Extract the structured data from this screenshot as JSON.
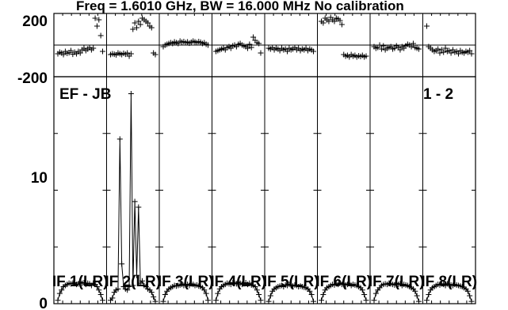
{
  "chart_data": {
    "type": "scatter",
    "title": "Freq = 1.6010 GHz, BW = 16.000 MHz   No calibration",
    "baseline_label": "EF - JB",
    "pol_label": "1 - 2",
    "phase_axis": {
      "ticks": [
        "200",
        "-200"
      ],
      "range": [
        -200,
        200
      ]
    },
    "amp_axis": {
      "ticks": [
        "10",
        "0"
      ],
      "range": [
        0,
        20
      ]
    },
    "panels": [
      {
        "label": "IF 1(LR)",
        "phase": [
          -55,
          -45,
          -50,
          -60,
          -40,
          -52,
          -48,
          -35,
          -58,
          -45,
          -55,
          -40,
          -50,
          -30,
          -20,
          -35,
          -25,
          -15,
          -30,
          -20,
          170,
          120,
          160,
          60,
          -40
        ],
        "amplitude": [
          0.3,
          0.9,
          1.2,
          1.5,
          1.6,
          1.7,
          1.8,
          1.75,
          1.8,
          1.85,
          1.7,
          1.75,
          1.9,
          1.8,
          1.85,
          1.7,
          1.8,
          1.75,
          1.6,
          1.8,
          1.7,
          1.5,
          1.2,
          0.8,
          0.3
        ]
      },
      {
        "label": "IF 2(LR)",
        "phase": [
          -60,
          -55,
          -58,
          -62,
          -50,
          -55,
          -60,
          -52,
          -58,
          -50,
          -70,
          -55,
          100,
          140,
          110,
          150,
          130,
          170,
          160,
          150,
          140,
          120,
          110,
          -50,
          -60
        ],
        "amplitude": [
          0.3,
          0.5,
          1.0,
          1.2,
          1.3,
          14.5,
          3.5,
          1.5,
          1.3,
          1.2,
          1.5,
          18.5,
          1.6,
          9.0,
          2.5,
          8.5,
          1.8,
          2.0,
          1.6,
          1.5,
          1.3,
          1.2,
          1.0,
          0.6,
          0.2
        ]
      },
      {
        "label": "IF 3(LR)",
        "phase": [
          -10,
          0,
          5,
          10,
          15,
          10,
          20,
          15,
          10,
          25,
          18,
          22,
          15,
          20,
          12,
          18,
          25,
          20,
          15,
          22,
          18,
          10,
          15,
          5,
          0
        ],
        "amplitude": [
          0.2,
          0.8,
          1.1,
          1.3,
          1.4,
          1.5,
          1.6,
          1.55,
          1.6,
          1.65,
          1.7,
          1.6,
          1.65,
          1.7,
          1.6,
          1.75,
          1.7,
          1.6,
          1.65,
          1.55,
          1.5,
          1.4,
          1.2,
          0.9,
          0.3
        ]
      },
      {
        "label": "IF 4(LR)",
        "phase": [
          -40,
          -35,
          -30,
          -25,
          -20,
          -30,
          -15,
          -10,
          -20,
          -5,
          0,
          -10,
          5,
          10,
          0,
          -5,
          -10,
          -20,
          5,
          -15,
          50,
          30,
          15,
          10,
          -50
        ],
        "amplitude": [
          0.3,
          0.9,
          1.3,
          1.5,
          1.6,
          1.7,
          1.8,
          1.75,
          1.7,
          1.85,
          1.8,
          1.75,
          1.9,
          1.8,
          1.7,
          1.75,
          1.85,
          1.7,
          1.8,
          1.65,
          1.6,
          1.5,
          1.2,
          0.8,
          0.3
        ]
      },
      {
        "label": "IF 5(LR)",
        "phase": [
          -20,
          -25,
          -15,
          -30,
          -20,
          -25,
          -35,
          -20,
          -30,
          -25,
          -40,
          -20,
          -30,
          -25,
          -15,
          -30,
          -20,
          -35,
          -25,
          -30,
          -20,
          -35,
          -25,
          -30,
          -40
        ],
        "amplitude": [
          0.2,
          0.7,
          1.1,
          1.3,
          1.4,
          1.5,
          1.55,
          1.6,
          1.5,
          1.65,
          1.6,
          1.7,
          1.6,
          1.55,
          1.65,
          1.6,
          1.5,
          1.55,
          1.5,
          1.45,
          1.4,
          1.3,
          1.1,
          0.8,
          0.2
        ]
      },
      {
        "label": "IF 6(LR)",
        "phase": [
          150,
          140,
          170,
          160,
          150,
          175,
          160,
          150,
          170,
          165,
          155,
          130,
          -60,
          -70,
          -65,
          -75,
          -60,
          -70,
          -65,
          -75,
          -68,
          -72,
          -65,
          -75,
          -70
        ],
        "amplitude": [
          0.3,
          0.8,
          1.2,
          1.4,
          1.5,
          1.6,
          1.7,
          1.65,
          1.75,
          1.7,
          1.8,
          1.7,
          1.75,
          1.65,
          1.7,
          1.8,
          1.6,
          1.7,
          1.65,
          1.6,
          1.5,
          1.4,
          1.2,
          0.8,
          0.3
        ]
      },
      {
        "label": "IF 7(LR)",
        "phase": [
          -10,
          -20,
          -15,
          0,
          -25,
          -5,
          -30,
          -20,
          -15,
          -10,
          -25,
          -20,
          -5,
          -15,
          -30,
          -10,
          -20,
          -5,
          5,
          0,
          -10,
          10,
          -15,
          -20,
          -25
        ],
        "amplitude": [
          0.3,
          0.9,
          1.2,
          1.4,
          1.6,
          1.7,
          1.75,
          1.7,
          1.8,
          1.75,
          1.7,
          1.65,
          1.8,
          1.7,
          1.75,
          1.6,
          1.7,
          1.65,
          1.6,
          1.5,
          1.4,
          1.3,
          1.1,
          0.7,
          0.2
        ]
      },
      {
        "label": "IF 8(LR)",
        "phase": [
          120,
          -10,
          -20,
          -30,
          -40,
          -35,
          -25,
          -50,
          -30,
          -45,
          -20,
          -40,
          -35,
          -50,
          -30,
          -45,
          -40,
          -55,
          -35,
          -45,
          -50,
          -40,
          -45,
          -35,
          -55
        ],
        "amplitude": [
          0.3,
          0.8,
          1.2,
          1.4,
          1.5,
          1.6,
          1.7,
          1.65,
          1.75,
          1.7,
          1.6,
          1.75,
          1.7,
          1.65,
          1.6,
          1.7,
          1.65,
          1.6,
          1.55,
          1.5,
          1.4,
          1.3,
          1.1,
          0.7,
          0.2
        ]
      }
    ]
  }
}
